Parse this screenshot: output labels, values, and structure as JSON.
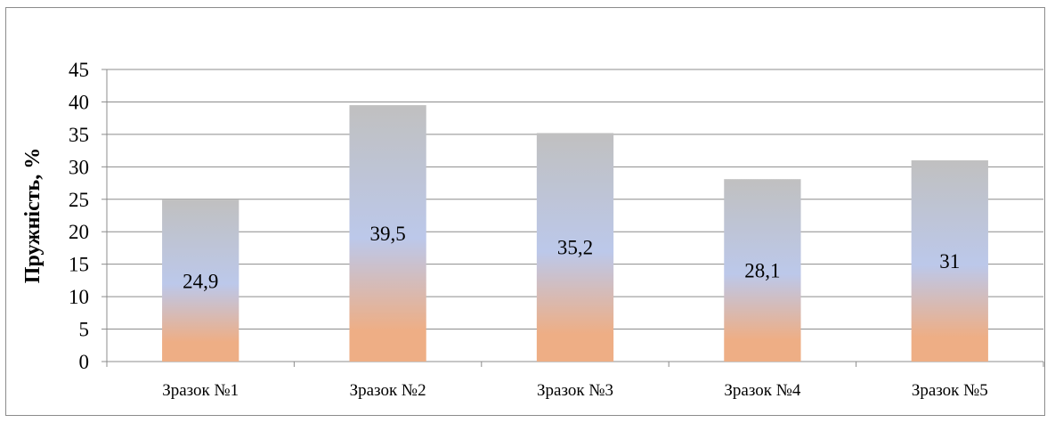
{
  "chart_data": {
    "type": "bar",
    "title": "",
    "xlabel": "",
    "ylabel": "Пружність, %",
    "categories": [
      "Зразок №1",
      "Зразок №2",
      "Зразок №3",
      "Зразок №4",
      "Зразок №5"
    ],
    "values": [
      24.9,
      39.5,
      35.2,
      28.1,
      31
    ],
    "data_labels": [
      "24,9",
      "39,5",
      "35,2",
      "28,1",
      "31"
    ],
    "ylim": [
      0,
      45
    ],
    "yticks": [
      0,
      5,
      10,
      15,
      20,
      25,
      30,
      35,
      40,
      45
    ],
    "grid": true,
    "legend": "none",
    "colors": {
      "bar_top": "#c0c0c0",
      "bar_mid": "#bcc8ea",
      "bar_bottom": "#eeae85",
      "gridline": "#8c8c8c",
      "axis": "#8c8c8c"
    }
  }
}
